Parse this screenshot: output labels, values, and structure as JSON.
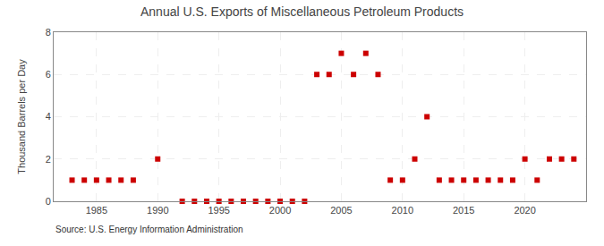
{
  "chart_data": {
    "type": "scatter",
    "title": "Annual U.S. Exports of Miscellaneous Petroleum Products",
    "ylabel": "Thousand Barrels per Day",
    "annotations": [
      "Source: U.S. Energy Information Administration"
    ],
    "color": "#cc0000",
    "marker": "square",
    "grid": true,
    "xlim": [
      1981.5,
      2025
    ],
    "ylim": [
      0,
      8
    ],
    "xticks": [
      1985,
      1990,
      1995,
      2000,
      2005,
      2010,
      2015,
      2020
    ],
    "yticks": [
      0,
      2,
      4,
      6,
      8
    ],
    "x": [
      1983,
      1984,
      1985,
      1986,
      1987,
      1988,
      1990,
      1992,
      1993,
      1994,
      1995,
      1996,
      1997,
      1998,
      1999,
      2000,
      2001,
      2002,
      2003,
      2004,
      2005,
      2006,
      2007,
      2008,
      2009,
      2010,
      2011,
      2012,
      2013,
      2014,
      2015,
      2016,
      2017,
      2018,
      2019,
      2020,
      2021,
      2022,
      2023,
      2024
    ],
    "values": [
      1,
      1,
      1,
      1,
      1,
      1,
      2,
      0,
      0,
      0,
      0,
      0,
      0,
      0,
      0,
      0,
      0,
      0,
      6,
      6,
      7,
      6,
      7,
      6,
      1,
      1,
      2,
      4,
      1,
      1,
      1,
      1,
      1,
      1,
      1,
      2,
      1,
      2,
      2,
      2
    ]
  }
}
